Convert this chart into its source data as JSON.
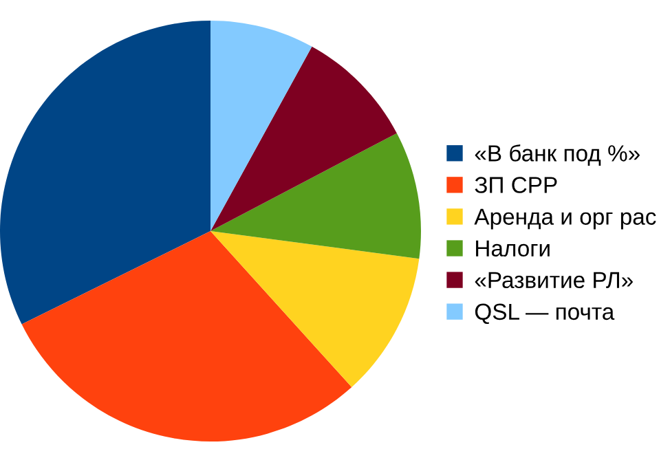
{
  "chart_data": {
    "type": "pie",
    "categories": [
      "«В банк под %»",
      "ЗП СРР",
      "Аренда и орг рас",
      "Налоги",
      "«Развитие РЛ»",
      "QSL — почта"
    ],
    "values": [
      32.3,
      29.4,
      11.2,
      9.8,
      9.3,
      8.0
    ],
    "colors": [
      "#004586",
      "#ff420e",
      "#ffd320",
      "#579d1c",
      "#7e0021",
      "#83caff"
    ],
    "legend": "right"
  }
}
